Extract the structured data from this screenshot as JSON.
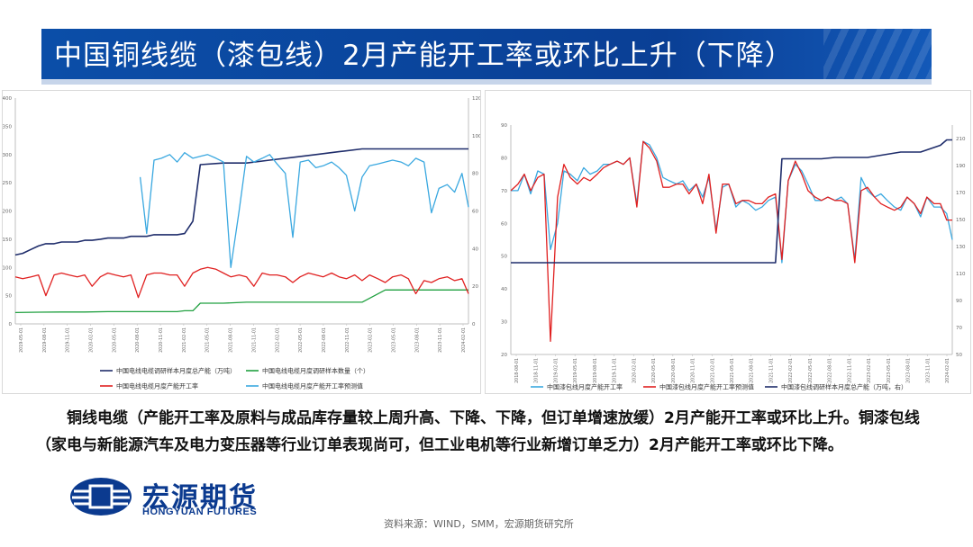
{
  "title": "中国铜线缆（漆包线）2月产能开工率或环比上升（下降）",
  "body_text": "铜线电缆（产能开工率及原料与成品库存量较上周升高、下降、下降，但订单增速放缓）2月产能开工率或环比上升。铜漆包线（家电与新能源汽车及电力变压器等行业订单表现尚可，但工业电机等行业新增订单乏力）2月产能开工率或环比下降。",
  "logo": {
    "cn": "宏源期货",
    "en": "HONGYUAN FUTURES"
  },
  "source": "资料来源：WIND，SMM，宏源期货研究所",
  "chart_data": [
    {
      "type": "line",
      "title": "",
      "x_tick_labels": [
        "2019-05-01",
        "2019-08-01",
        "2019-11-01",
        "2020-02-01",
        "2020-05-01",
        "2020-08-01",
        "2020-11-01",
        "2021-02-01",
        "2021-05-01",
        "2021-08-01",
        "2021-11-01",
        "2022-02-01",
        "2022-05-01",
        "2022-08-01",
        "2022-11-01",
        "2023-02-01",
        "2023-05-01",
        "2023-08-01",
        "2023-11-01",
        "2024-02-01"
      ],
      "x_range": [
        2019.25,
        2024.15
      ],
      "y_left_range": [
        0,
        400
      ],
      "y_left_ticks": [
        0,
        50,
        100,
        150,
        200,
        250,
        300,
        350,
        400
      ],
      "y_right_range": [
        0,
        120
      ],
      "y_right_ticks": [
        0,
        20,
        40,
        60,
        80,
        100,
        120
      ],
      "legend_position": "bottom",
      "series": [
        {
          "name": "中国电线电缆调研样本月度总产能（万吨）",
          "axis": "left",
          "color": "#1f2d6b",
          "x": [
            2019.25,
            2019.33,
            2019.42,
            2019.5,
            2019.58,
            2019.67,
            2019.75,
            2019.83,
            2019.92,
            2020.0,
            2020.08,
            2020.17,
            2020.25,
            2020.33,
            2020.42,
            2020.5,
            2020.58,
            2020.67,
            2020.75,
            2020.83,
            2020.92,
            2021.0,
            2021.08,
            2021.17,
            2021.25,
            2021.5,
            2021.75,
            2022.0,
            2022.25,
            2022.5,
            2022.75,
            2023.0,
            2023.08,
            2023.25,
            2023.5,
            2023.75,
            2024.0,
            2024.15
          ],
          "y": [
            122,
            125,
            132,
            138,
            142,
            142,
            145,
            145,
            145,
            148,
            148,
            150,
            152,
            152,
            152,
            155,
            155,
            155,
            158,
            158,
            158,
            158,
            160,
            182,
            282,
            285,
            285,
            290,
            295,
            300,
            305,
            310,
            310,
            310,
            310,
            310,
            310,
            310
          ]
        },
        {
          "name": "中国电线电缆月度调研样本数量（个）",
          "axis": "right",
          "color": "#20a040",
          "x": [
            2019.25,
            2019.5,
            2019.75,
            2020.0,
            2020.25,
            2020.5,
            2020.75,
            2021.0,
            2021.08,
            2021.17,
            2021.25,
            2021.5,
            2021.75,
            2022.0,
            2022.25,
            2022.5,
            2022.75,
            2023.0,
            2023.25,
            2023.5,
            2023.75,
            2024.0,
            2024.15
          ],
          "y": [
            6,
            6.2,
            6.3,
            6.3,
            6.5,
            6.5,
            6.5,
            6.5,
            7,
            7,
            11,
            11,
            11.5,
            11.5,
            11.5,
            11.5,
            11.5,
            11.5,
            18,
            18,
            18,
            18,
            18
          ]
        },
        {
          "name": "中国电线电缆月度产能开工率",
          "axis": "right",
          "color": "#e02020",
          "x": [
            2019.25,
            2019.33,
            2019.42,
            2019.5,
            2019.58,
            2019.67,
            2019.75,
            2019.83,
            2019.92,
            2020.0,
            2020.08,
            2020.17,
            2020.25,
            2020.33,
            2020.42,
            2020.5,
            2020.58,
            2020.67,
            2020.75,
            2020.83,
            2020.92,
            2021.0,
            2021.08,
            2021.17,
            2021.25,
            2021.33,
            2021.42,
            2021.5,
            2021.58,
            2021.67,
            2021.75,
            2021.83,
            2021.92,
            2022.0,
            2022.08,
            2022.17,
            2022.25,
            2022.33,
            2022.42,
            2022.5,
            2022.58,
            2022.67,
            2022.75,
            2022.83,
            2022.92,
            2023.0,
            2023.08,
            2023.17,
            2023.25,
            2023.33,
            2023.42,
            2023.5,
            2023.58,
            2023.67,
            2023.75,
            2023.83,
            2023.92,
            2024.0,
            2024.08,
            2024.15
          ],
          "y": [
            25,
            24,
            25,
            26,
            15,
            26,
            27,
            26,
            25,
            26,
            20,
            25,
            27,
            26,
            25,
            26,
            14,
            26,
            27,
            27,
            26,
            26,
            20,
            27,
            29,
            30,
            29,
            27,
            25,
            26,
            25,
            20,
            27,
            26,
            26,
            25,
            22,
            25,
            27,
            26,
            25,
            27,
            25,
            24,
            26,
            23,
            26,
            24,
            22,
            25,
            26,
            24,
            16,
            23,
            22,
            24,
            25,
            23,
            24,
            16
          ]
        },
        {
          "name": "中国电线电缆月度产能开工率预测值",
          "axis": "right",
          "color": "#3aa8e0",
          "x": [
            2020.6,
            2020.67,
            2020.75,
            2020.83,
            2020.92,
            2021.0,
            2021.08,
            2021.17,
            2021.25,
            2021.33,
            2021.42,
            2021.5,
            2021.58,
            2021.67,
            2021.75,
            2021.83,
            2021.92,
            2022.0,
            2022.08,
            2022.17,
            2022.25,
            2022.33,
            2022.42,
            2022.5,
            2022.58,
            2022.67,
            2022.75,
            2022.83,
            2022.92,
            2023.0,
            2023.08,
            2023.17,
            2023.25,
            2023.33,
            2023.42,
            2023.5,
            2023.58,
            2023.67,
            2023.75,
            2023.83,
            2023.92,
            2024.0,
            2024.08,
            2024.15
          ],
          "y": [
            78,
            48,
            87,
            88,
            90,
            86,
            91,
            88,
            89,
            90,
            88,
            86,
            30,
            60,
            89,
            86,
            88,
            90,
            85,
            80,
            46,
            86,
            87,
            83,
            84,
            86,
            83,
            79,
            60,
            78,
            84,
            85,
            86,
            87,
            86,
            84,
            88,
            86,
            59,
            72,
            74,
            70,
            80,
            62
          ]
        }
      ]
    },
    {
      "type": "line",
      "title": "",
      "x_tick_labels": [
        "2018-08-01",
        "2018-11-01",
        "2019-02-01",
        "2019-05-01",
        "2019-08-01",
        "2019-11-01",
        "2020-02-01",
        "2020-05-01",
        "2020-08-01",
        "2020-11-01",
        "2021-02-01",
        "2021-05-01",
        "2021-08-01",
        "2021-11-01",
        "2022-02-01",
        "2022-05-01",
        "2022-08-01",
        "2022-11-01",
        "2023-02-01",
        "2023-05-01",
        "2023-08-01",
        "2023-11-01",
        "2024-02-01"
      ],
      "x_range": [
        2018.58,
        2024.15
      ],
      "y_left_range": [
        20,
        90
      ],
      "y_left_ticks": [
        20,
        30,
        40,
        50,
        60,
        70,
        80,
        90
      ],
      "y_right_range": [
        50,
        220
      ],
      "y_right_ticks": [
        50,
        70,
        90,
        110,
        130,
        150,
        170,
        190,
        210
      ],
      "legend_position": "bottom",
      "series": [
        {
          "name": "中国漆包线月度产能开工率",
          "axis": "left",
          "color": "#3aa8e0",
          "x": [
            2018.58,
            2018.67,
            2018.75,
            2018.83,
            2018.92,
            2019.0,
            2019.08,
            2019.17,
            2019.25,
            2019.33,
            2019.42,
            2019.5,
            2019.58,
            2019.67,
            2019.75,
            2019.83,
            2019.92,
            2020.0,
            2020.08,
            2020.17,
            2020.25,
            2020.33,
            2020.42,
            2020.5,
            2020.58,
            2020.67,
            2020.75,
            2020.83,
            2020.92,
            2021.0,
            2021.08,
            2021.17,
            2021.25,
            2021.33,
            2021.42,
            2021.5,
            2021.58,
            2021.67,
            2021.75,
            2021.83,
            2021.92,
            2022.0,
            2022.08,
            2022.17,
            2022.25,
            2022.33,
            2022.42,
            2022.5,
            2022.58,
            2022.67,
            2022.75,
            2022.83,
            2022.92,
            2023.0,
            2023.08,
            2023.17,
            2023.25,
            2023.33,
            2023.42,
            2023.5,
            2023.58,
            2023.67,
            2023.75,
            2023.83,
            2023.92,
            2024.0,
            2024.08,
            2024.15
          ],
          "y": [
            70,
            70,
            75,
            69,
            76,
            75,
            52,
            60,
            76,
            75,
            73,
            77,
            75,
            76,
            78,
            78,
            79,
            78,
            80,
            66,
            85,
            84,
            80,
            74,
            73,
            72,
            73,
            70,
            72,
            68,
            74,
            58,
            71,
            72,
            65,
            67,
            66,
            64,
            65,
            67,
            68,
            48,
            73,
            78,
            76,
            72,
            67,
            67,
            68,
            67,
            68,
            66,
            49,
            74,
            70,
            68,
            69,
            67,
            65,
            64,
            68,
            66,
            62,
            68,
            65,
            65,
            63,
            55
          ]
        },
        {
          "name": "中国漆包线月度产能开工率预测值",
          "axis": "left",
          "color": "#e02020",
          "x": [
            2018.58,
            2018.67,
            2018.75,
            2018.83,
            2018.92,
            2019.0,
            2019.08,
            2019.17,
            2019.25,
            2019.33,
            2019.42,
            2019.5,
            2019.58,
            2019.67,
            2019.75,
            2019.83,
            2019.92,
            2020.0,
            2020.08,
            2020.17,
            2020.25,
            2020.33,
            2020.42,
            2020.5,
            2020.58,
            2020.67,
            2020.75,
            2020.83,
            2020.92,
            2021.0,
            2021.08,
            2021.17,
            2021.25,
            2021.33,
            2021.42,
            2021.5,
            2021.58,
            2021.67,
            2021.75,
            2021.83,
            2021.92,
            2022.0,
            2022.08,
            2022.17,
            2022.25,
            2022.33,
            2022.42,
            2022.5,
            2022.58,
            2022.67,
            2022.75,
            2022.83,
            2022.92,
            2023.0,
            2023.08,
            2023.17,
            2023.25,
            2023.33,
            2023.42,
            2023.5,
            2023.58,
            2023.67,
            2023.75,
            2023.83,
            2023.92,
            2024.0,
            2024.08,
            2024.15
          ],
          "y": [
            70,
            72,
            75,
            70,
            74,
            75,
            24,
            68,
            78,
            74,
            72,
            74,
            73,
            75,
            77,
            78,
            79,
            78,
            80,
            65,
            85,
            83,
            79,
            71,
            71,
            72,
            72,
            69,
            72,
            66,
            75,
            57,
            72,
            72,
            66,
            67,
            67,
            66,
            66,
            68,
            69,
            49,
            73,
            79,
            75,
            70,
            68,
            67,
            68,
            67,
            67,
            66,
            48,
            70,
            71,
            68,
            66,
            65,
            64,
            65,
            68,
            66,
            63,
            68,
            66,
            66,
            61,
            61
          ]
        },
        {
          "name": "中国漆包线调研样本月度总产能（万吨，右）",
          "axis": "right",
          "color": "#1f2d6b",
          "x": [
            2018.58,
            2018.75,
            2019.0,
            2019.5,
            2020.0,
            2020.5,
            2021.0,
            2021.5,
            2021.75,
            2021.92,
            2022.0,
            2022.5,
            2022.67,
            2023.0,
            2023.08,
            2023.5,
            2023.75,
            2024.0,
            2024.08,
            2024.15
          ],
          "y": [
            118,
            118,
            118,
            118,
            118,
            118,
            118,
            118,
            118,
            118,
            195,
            195,
            196,
            196,
            196,
            200,
            200,
            205,
            209,
            209
          ]
        }
      ]
    }
  ]
}
